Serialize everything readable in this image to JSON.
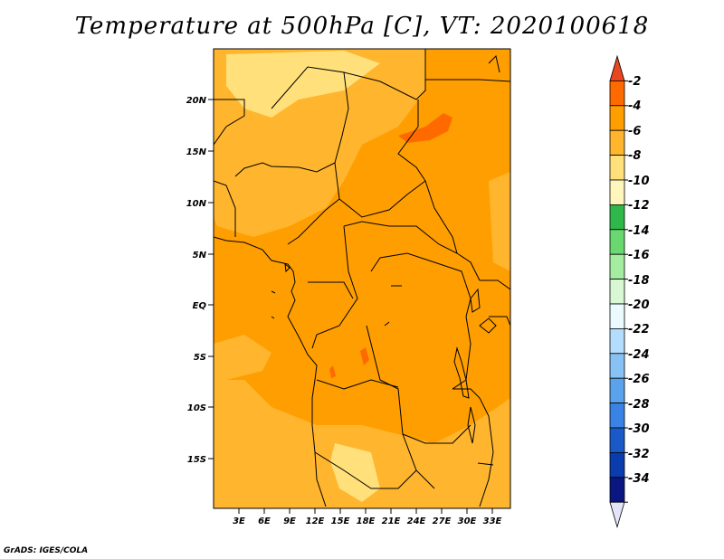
{
  "title": "Temperature at 500hPa [C], VT: 2020100618",
  "credit": "GrADS: IGES/COLA",
  "map": {
    "lat_labels": [
      "20N",
      "15N",
      "10N",
      "5N",
      "EQ",
      "5S",
      "10S",
      "15S"
    ],
    "lon_labels": [
      "3E",
      "6E",
      "9E",
      "12E",
      "15E",
      "18E",
      "21E",
      "24E",
      "27E",
      "30E",
      "33E"
    ]
  },
  "colorbar": {
    "labels": [
      "-2",
      "-4",
      "-6",
      "-8",
      "-10",
      "-12",
      "-14",
      "-16",
      "-18",
      "-20",
      "-22",
      "-24",
      "-26",
      "-28",
      "-30",
      "-32",
      "-34"
    ],
    "colors": [
      "#e8461e",
      "#ff6a00",
      "#ff9e00",
      "#ffb62e",
      "#ffe07a",
      "#fff5bd",
      "#2fb84a",
      "#6ad870",
      "#a3eca0",
      "#d8f8d4",
      "#eafaff",
      "#b4dcfc",
      "#88c2f4",
      "#5aa2ec",
      "#3a82e4",
      "#1a5ac8",
      "#0a3cae",
      "#0b1780",
      "#e4e4f8"
    ],
    "legend_colors": {
      "deep_orange": "#ff6a00",
      "orange": "#ff9e00",
      "light_orange": "#ffb62e",
      "yellow": "#ffe07a"
    }
  }
}
